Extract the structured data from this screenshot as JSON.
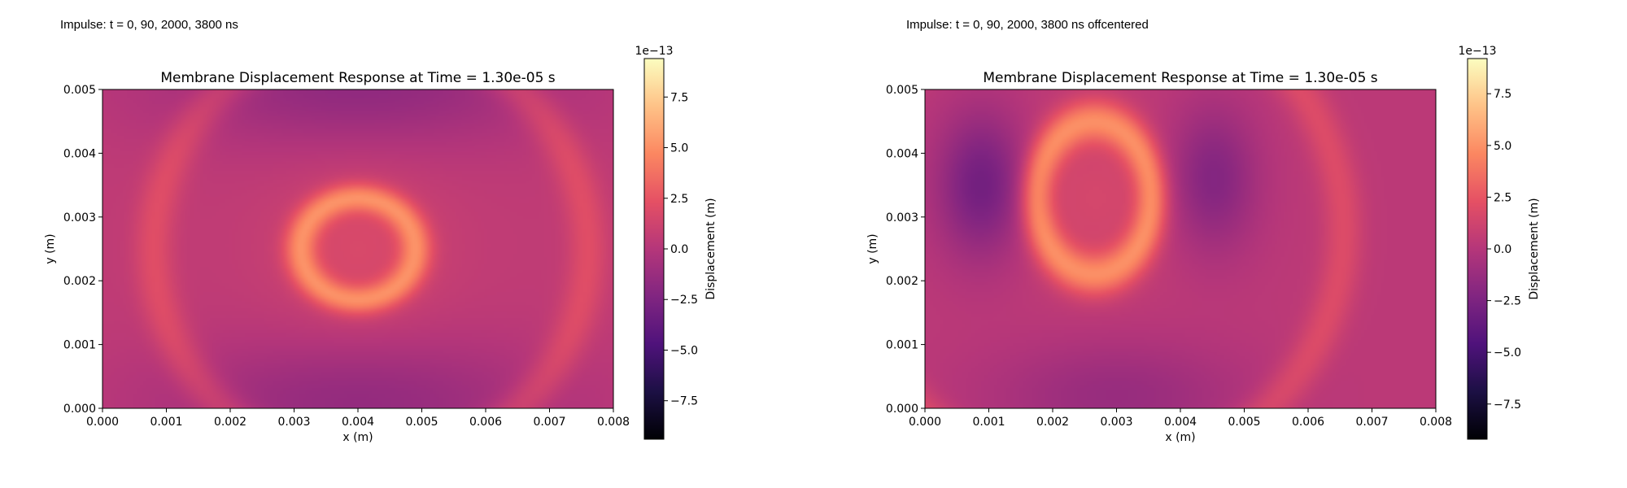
{
  "captions": [
    "Impulse: t = 0, 90, 2000, 3800 ns",
    "Impulse: t = 0, 90, 2000, 3800 ns offcentered"
  ],
  "chart_data": [
    {
      "type": "heatmap",
      "title": "Membrane Displacement Response at Time = 1.30e-05 s",
      "xlabel": "x (m)",
      "ylabel": "y (m)",
      "xlim": [
        0,
        0.008
      ],
      "ylim": [
        0,
        0.005
      ],
      "xticks": [
        "0.000",
        "0.001",
        "0.002",
        "0.003",
        "0.004",
        "0.005",
        "0.006",
        "0.007",
        "0.008"
      ],
      "yticks": [
        "0.000",
        "0.001",
        "0.002",
        "0.003",
        "0.004",
        "0.005"
      ],
      "colormap": "magma",
      "colorbar": {
        "label": "Displacement (m)",
        "offset_text": "1e−13",
        "range": [
          -9.4,
          9.4
        ],
        "ticks": [
          "−7.5",
          "−5.0",
          "−2.5",
          "0.0",
          "2.5",
          "5.0",
          "7.5"
        ]
      },
      "features": {
        "baseline": 0.5,
        "ring": {
          "cx": 0.004,
          "cy": 0.0025,
          "radius_x": 0.0009,
          "radius_y": 0.0008,
          "peak": 4.0
        },
        "halo": {
          "cx": 0.004,
          "cy": 0.0025,
          "radius": 0.0015,
          "peak": 1.2
        },
        "arcs": [
          {
            "cx": 0.0042,
            "cy": 0.0025,
            "radius": 0.0034,
            "peak": 1.6
          }
        ],
        "troughs": [
          {
            "cx": 0.004,
            "cy": 0.0051,
            "sx": 0.0022,
            "sy": 0.0007,
            "depth": -2.2
          },
          {
            "cx": 0.004,
            "cy": 0.0001,
            "sx": 0.0022,
            "sy": 0.0007,
            "depth": -2.0
          }
        ]
      }
    },
    {
      "type": "heatmap",
      "title": "Membrane Displacement Response at Time = 1.30e-05 s",
      "xlabel": "x (m)",
      "ylabel": "y (m)",
      "xlim": [
        0,
        0.008
      ],
      "ylim": [
        0,
        0.005
      ],
      "xticks": [
        "0.000",
        "0.001",
        "0.002",
        "0.003",
        "0.004",
        "0.005",
        "0.006",
        "0.007",
        "0.008"
      ],
      "yticks": [
        "0.000",
        "0.001",
        "0.002",
        "0.003",
        "0.004",
        "0.005"
      ],
      "colormap": "magma",
      "colorbar": {
        "label": "Displacement (m)",
        "offset_text": "1e−13",
        "range": [
          -9.2,
          9.2
        ],
        "ticks": [
          "−7.5",
          "−5.0",
          "−2.5",
          "0.0",
          "2.5",
          "5.0",
          "7.5"
        ]
      },
      "features": {
        "baseline": 0.3,
        "ring": {
          "cx": 0.00265,
          "cy": 0.0033,
          "radius_x": 0.0009,
          "radius_y": 0.0012,
          "peak": 4.2
        },
        "halo": {
          "cx": 0.00265,
          "cy": 0.0033,
          "radius": 0.0015,
          "peak": 1.2
        },
        "arcs": [
          {
            "cx": 0.00265,
            "cy": 0.0028,
            "radius": 0.0039,
            "peak": 1.6
          }
        ],
        "troughs": [
          {
            "cx": 0.0009,
            "cy": 0.0035,
            "sx": 0.0005,
            "sy": 0.0008,
            "depth": -3.4
          },
          {
            "cx": 0.0045,
            "cy": 0.0036,
            "sx": 0.0005,
            "sy": 0.0008,
            "depth": -2.6
          },
          {
            "cx": 0.003,
            "cy": 0.0002,
            "sx": 0.0014,
            "sy": 0.0006,
            "depth": -1.6
          }
        ]
      }
    }
  ]
}
